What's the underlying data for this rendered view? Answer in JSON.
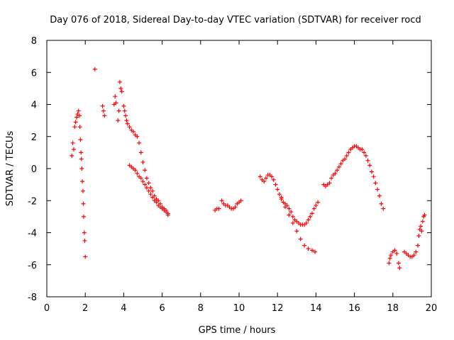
{
  "chart_data": {
    "type": "scatter",
    "title": "Day 076 of 2018, Sidereal Day-to-day VTEC variation (SDTVAR) for receiver rocd",
    "xlabel": "GPS time / hours",
    "ylabel": "SDTVAR / TECUs",
    "xlim": [
      0,
      20
    ],
    "ylim": [
      -8,
      8
    ],
    "xticks": [
      0,
      2,
      4,
      6,
      8,
      10,
      12,
      14,
      16,
      18,
      20
    ],
    "yticks": [
      -8,
      -6,
      -4,
      -2,
      0,
      2,
      4,
      6,
      8
    ],
    "grid": false,
    "marker": "+",
    "color": "#ff0000",
    "series": [
      {
        "name": "SDTVAR",
        "points": [
          [
            1.3,
            0.8
          ],
          [
            1.35,
            1.6
          ],
          [
            1.4,
            1.2
          ],
          [
            1.45,
            2.6
          ],
          [
            1.5,
            2.9
          ],
          [
            1.55,
            3.2
          ],
          [
            1.6,
            3.4
          ],
          [
            1.65,
            3.6
          ],
          [
            1.7,
            3.3
          ],
          [
            1.72,
            2.6
          ],
          [
            1.75,
            1.8
          ],
          [
            1.78,
            1.0
          ],
          [
            1.8,
            0.6
          ],
          [
            1.82,
            0.0
          ],
          [
            1.85,
            -0.8
          ],
          [
            1.88,
            -1.4
          ],
          [
            1.9,
            -2.2
          ],
          [
            1.92,
            -3.0
          ],
          [
            1.95,
            -4.0
          ],
          [
            1.97,
            -4.5
          ],
          [
            2.0,
            -5.5
          ],
          [
            2.5,
            6.2
          ],
          [
            2.9,
            3.9
          ],
          [
            2.95,
            3.6
          ],
          [
            3.0,
            3.3
          ],
          [
            3.5,
            4.0
          ],
          [
            3.55,
            4.5
          ],
          [
            3.6,
            4.1
          ],
          [
            3.7,
            3.0
          ],
          [
            3.75,
            3.6
          ],
          [
            3.8,
            5.4
          ],
          [
            3.85,
            5.0
          ],
          [
            3.9,
            4.8
          ],
          [
            4.0,
            3.9
          ],
          [
            4.05,
            3.6
          ],
          [
            4.1,
            3.3
          ],
          [
            4.15,
            3.0
          ],
          [
            4.2,
            2.8
          ],
          [
            4.3,
            2.6
          ],
          [
            4.4,
            2.4
          ],
          [
            4.5,
            2.3
          ],
          [
            4.6,
            2.1
          ],
          [
            4.7,
            2.0
          ],
          [
            4.8,
            1.6
          ],
          [
            4.9,
            1.0
          ],
          [
            5.0,
            0.4
          ],
          [
            5.1,
            -0.1
          ],
          [
            5.2,
            -0.6
          ],
          [
            5.3,
            -0.9
          ],
          [
            5.4,
            -1.2
          ],
          [
            5.5,
            -1.4
          ],
          [
            5.6,
            -1.7
          ],
          [
            5.7,
            -1.9
          ],
          [
            5.8,
            -2.0
          ],
          [
            5.9,
            -2.2
          ],
          [
            6.0,
            -2.4
          ],
          [
            6.1,
            -2.5
          ],
          [
            6.2,
            -2.6
          ],
          [
            6.3,
            -2.9
          ],
          [
            4.3,
            0.2
          ],
          [
            4.4,
            0.1
          ],
          [
            4.5,
            0.0
          ],
          [
            4.6,
            -0.1
          ],
          [
            4.7,
            -0.3
          ],
          [
            4.8,
            -0.5
          ],
          [
            4.9,
            -0.6
          ],
          [
            5.0,
            -0.8
          ],
          [
            5.1,
            -1.0
          ],
          [
            5.2,
            -1.2
          ],
          [
            5.3,
            -1.4
          ],
          [
            5.4,
            -1.6
          ],
          [
            5.5,
            -1.8
          ],
          [
            5.6,
            -2.0
          ],
          [
            5.7,
            -2.1
          ],
          [
            5.8,
            -2.3
          ],
          [
            5.9,
            -2.4
          ],
          [
            6.0,
            -2.5
          ],
          [
            6.1,
            -2.6
          ],
          [
            6.2,
            -2.7
          ],
          [
            6.3,
            -2.8
          ],
          [
            8.75,
            -2.6
          ],
          [
            8.85,
            -2.5
          ],
          [
            8.95,
            -2.5
          ],
          [
            9.1,
            -2.0
          ],
          [
            9.2,
            -2.2
          ],
          [
            9.3,
            -2.3
          ],
          [
            9.4,
            -2.3
          ],
          [
            9.5,
            -2.4
          ],
          [
            9.6,
            -2.5
          ],
          [
            9.7,
            -2.5
          ],
          [
            9.8,
            -2.4
          ],
          [
            9.9,
            -2.2
          ],
          [
            10.0,
            -2.1
          ],
          [
            10.1,
            -2.0
          ],
          [
            11.1,
            -0.5
          ],
          [
            11.2,
            -0.7
          ],
          [
            11.3,
            -0.8
          ],
          [
            11.4,
            -0.6
          ],
          [
            11.5,
            -0.4
          ],
          [
            11.6,
            -0.4
          ],
          [
            11.7,
            -0.5
          ],
          [
            11.8,
            -0.7
          ],
          [
            11.9,
            -1.0
          ],
          [
            12.0,
            -1.3
          ],
          [
            12.1,
            -1.6
          ],
          [
            12.2,
            -1.9
          ],
          [
            12.3,
            -2.1
          ],
          [
            12.4,
            -2.2
          ],
          [
            12.5,
            -2.3
          ],
          [
            12.6,
            -2.5
          ],
          [
            12.7,
            -2.7
          ],
          [
            12.8,
            -3.0
          ],
          [
            12.9,
            -3.2
          ],
          [
            13.0,
            -3.3
          ],
          [
            13.1,
            -3.4
          ],
          [
            13.2,
            -3.5
          ],
          [
            13.3,
            -3.5
          ],
          [
            13.4,
            -3.5
          ],
          [
            13.5,
            -3.4
          ],
          [
            13.6,
            -3.2
          ],
          [
            13.7,
            -3.0
          ],
          [
            13.8,
            -2.8
          ],
          [
            13.9,
            -2.5
          ],
          [
            14.0,
            -2.3
          ],
          [
            14.1,
            -2.1
          ],
          [
            12.2,
            -1.8
          ],
          [
            12.4,
            -2.4
          ],
          [
            12.6,
            -2.9
          ],
          [
            12.8,
            -3.4
          ],
          [
            13.0,
            -3.9
          ],
          [
            13.2,
            -4.4
          ],
          [
            13.4,
            -4.8
          ],
          [
            13.6,
            -5.0
          ],
          [
            13.8,
            -5.1
          ],
          [
            13.95,
            -5.2
          ],
          [
            14.4,
            -1.0
          ],
          [
            14.5,
            -1.1
          ],
          [
            14.6,
            -1.0
          ],
          [
            14.7,
            -0.9
          ],
          [
            14.8,
            -0.6
          ],
          [
            14.9,
            -0.4
          ],
          [
            15.0,
            -0.3
          ],
          [
            15.1,
            -0.1
          ],
          [
            15.2,
            0.1
          ],
          [
            15.3,
            0.3
          ],
          [
            15.4,
            0.5
          ],
          [
            15.5,
            0.6
          ],
          [
            15.6,
            0.8
          ],
          [
            15.7,
            1.0
          ],
          [
            15.8,
            1.2
          ],
          [
            15.9,
            1.3
          ],
          [
            16.0,
            1.4
          ],
          [
            16.1,
            1.4
          ],
          [
            16.2,
            1.3
          ],
          [
            16.3,
            1.2
          ],
          [
            16.4,
            1.2
          ],
          [
            16.5,
            1.0
          ],
          [
            16.6,
            0.8
          ],
          [
            16.7,
            0.5
          ],
          [
            16.8,
            0.2
          ],
          [
            16.9,
            -0.2
          ],
          [
            17.0,
            -0.5
          ],
          [
            17.1,
            -0.9
          ],
          [
            17.2,
            -1.3
          ],
          [
            17.3,
            -1.7
          ],
          [
            17.4,
            -2.2
          ],
          [
            17.5,
            -2.5
          ],
          [
            17.8,
            -5.9
          ],
          [
            17.85,
            -5.6
          ],
          [
            17.9,
            -5.4
          ],
          [
            18.0,
            -5.2
          ],
          [
            18.1,
            -5.1
          ],
          [
            18.2,
            -5.3
          ],
          [
            18.3,
            -5.9
          ],
          [
            18.35,
            -6.2
          ],
          [
            18.6,
            -5.2
          ],
          [
            18.7,
            -5.3
          ],
          [
            18.8,
            -5.4
          ],
          [
            18.9,
            -5.5
          ],
          [
            19.0,
            -5.5
          ],
          [
            19.1,
            -5.4
          ],
          [
            19.2,
            -5.2
          ],
          [
            19.3,
            -4.8
          ],
          [
            19.35,
            -4.2
          ],
          [
            19.4,
            -3.8
          ],
          [
            19.45,
            -3.6
          ],
          [
            19.5,
            -3.9
          ],
          [
            19.55,
            -3.3
          ],
          [
            19.6,
            -3.0
          ],
          [
            19.65,
            -2.9
          ]
        ]
      }
    ]
  }
}
